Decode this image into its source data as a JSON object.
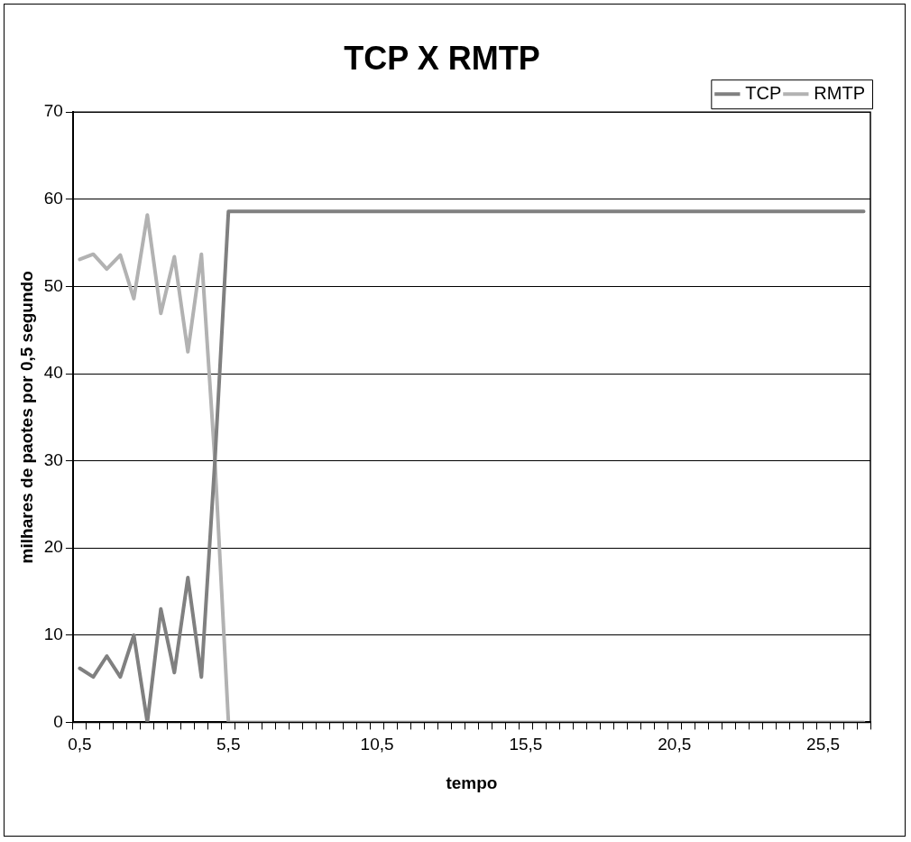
{
  "chart_data": {
    "type": "line",
    "title": "TCP X RMTP",
    "xlabel": "tempo",
    "ylabel": "milhares de paotes por 0,5 segundo",
    "categories": [
      "0,5",
      null,
      null,
      null,
      null,
      null,
      null,
      null,
      null,
      null,
      null,
      "5,5",
      null,
      null,
      null,
      null,
      null,
      null,
      null,
      null,
      null,
      null,
      "10,5",
      null,
      null,
      null,
      null,
      null,
      null,
      null,
      null,
      null,
      null,
      "15,5",
      null,
      null,
      null,
      null,
      null,
      null,
      null,
      null,
      null,
      null,
      "20,5",
      null,
      null,
      null,
      null,
      null,
      null,
      null,
      null,
      null,
      null,
      "25,5",
      null,
      null,
      null
    ],
    "series": [
      {
        "name": "TCP",
        "color": "#808080",
        "values": [
          6.2,
          5.2,
          7.6,
          5.2,
          10,
          0,
          13,
          5.7,
          16.6,
          5.2,
          30,
          58.6,
          58.6,
          58.6,
          58.6,
          58.6,
          58.6,
          58.6,
          58.6,
          58.6,
          58.6,
          58.6,
          58.6,
          58.6,
          58.6,
          58.6,
          58.6,
          58.6,
          58.6,
          58.6,
          58.6,
          58.6,
          58.6,
          58.6,
          58.6,
          58.6,
          58.6,
          58.6,
          58.6,
          58.6,
          58.6,
          58.6,
          58.6,
          58.6,
          58.6,
          58.6,
          58.6,
          58.6,
          58.6,
          58.6,
          58.6,
          58.6,
          58.6,
          58.6,
          58.6,
          58.6,
          58.6,
          58.6,
          58.6
        ]
      },
      {
        "name": "RMTP",
        "color": "#b2b2b2",
        "values": [
          53.1,
          53.7,
          52,
          53.6,
          48.6,
          58.2,
          46.9,
          53.4,
          42.5,
          53.7,
          30,
          0,
          0,
          0,
          0,
          0,
          0,
          0,
          0,
          0,
          0,
          0,
          0,
          0,
          0,
          0,
          0,
          0,
          0,
          0,
          0,
          0,
          0,
          0,
          0,
          0,
          0,
          0,
          0,
          0,
          0,
          0,
          0,
          0,
          0,
          0,
          0,
          0,
          0,
          0,
          0,
          0,
          0,
          0,
          0,
          0,
          0,
          0,
          0
        ]
      }
    ],
    "ylim": [
      0,
      70
    ],
    "yticks": [
      0,
      10,
      20,
      30,
      40,
      50,
      60,
      70
    ],
    "grid": "y",
    "legend": "top right",
    "marker": "none",
    "line_style": "solid"
  }
}
